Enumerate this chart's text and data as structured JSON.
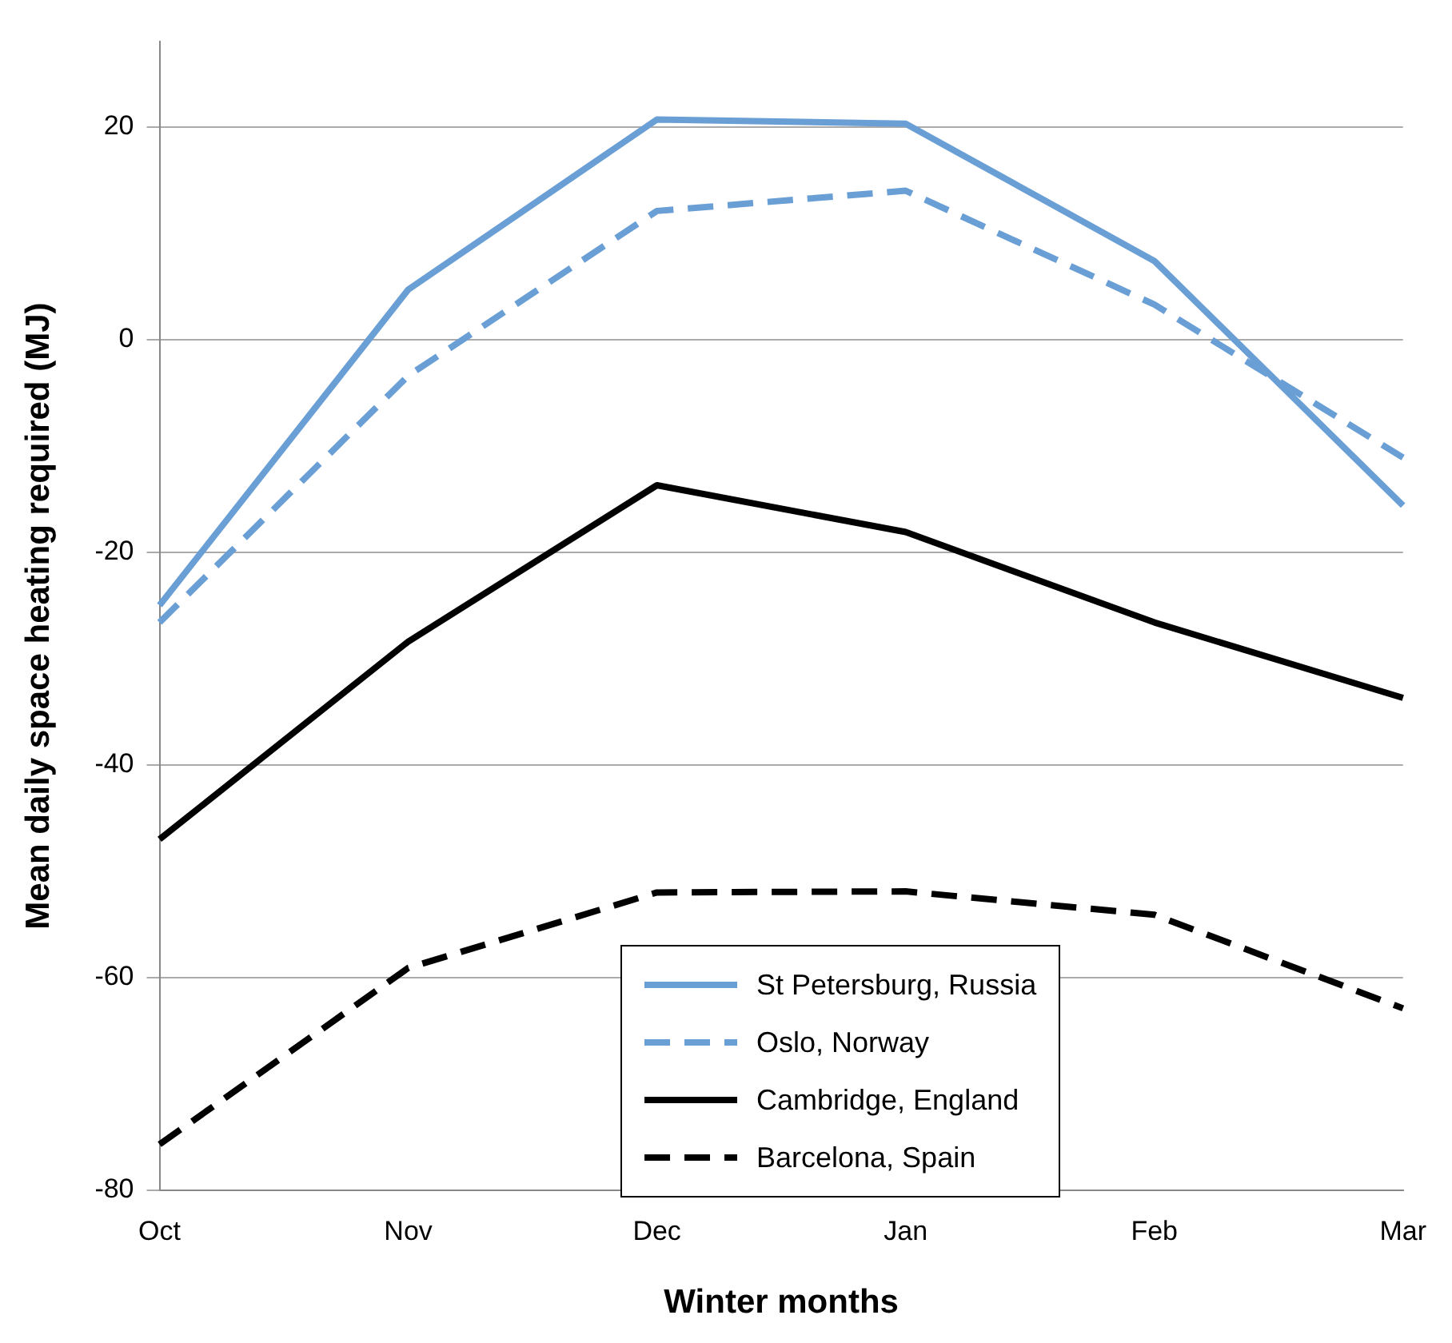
{
  "chart_data": {
    "type": "line",
    "xlabel": "Winter months",
    "ylabel": "Mean daily space heating required (MJ)",
    "categories": [
      "Oct",
      "Nov",
      "Dec",
      "Jan",
      "Feb",
      "Mar"
    ],
    "series": [
      {
        "name": "St Petersburg, Russia",
        "color": "#6a9fd6",
        "line_style": "solid",
        "values": [
          -25,
          4.7,
          20.7,
          20.3,
          7.4,
          -15.6
        ]
      },
      {
        "name": "Oslo, Norway",
        "color": "#6a9fd6",
        "line_style": "dashed",
        "values": [
          -26.6,
          -3.4,
          12.1,
          14,
          3.3,
          -11.1
        ]
      },
      {
        "name": "Cambridge, England",
        "color": "#000000",
        "line_style": "solid",
        "values": [
          -47,
          -28.4,
          -13.7,
          -18.1,
          -26.6,
          -33.7
        ]
      },
      {
        "name": "Barcelona, Spain",
        "color": "#000000",
        "line_style": "dashed",
        "values": [
          -75.7,
          -59.1,
          -52,
          -51.9,
          -54.1,
          -62.9
        ]
      }
    ],
    "ylim": [
      -80,
      28
    ],
    "yticks": [
      -80,
      -60,
      -40,
      -20,
      0,
      20
    ],
    "grid": "y",
    "legend": "bottom",
    "marker": "none"
  }
}
